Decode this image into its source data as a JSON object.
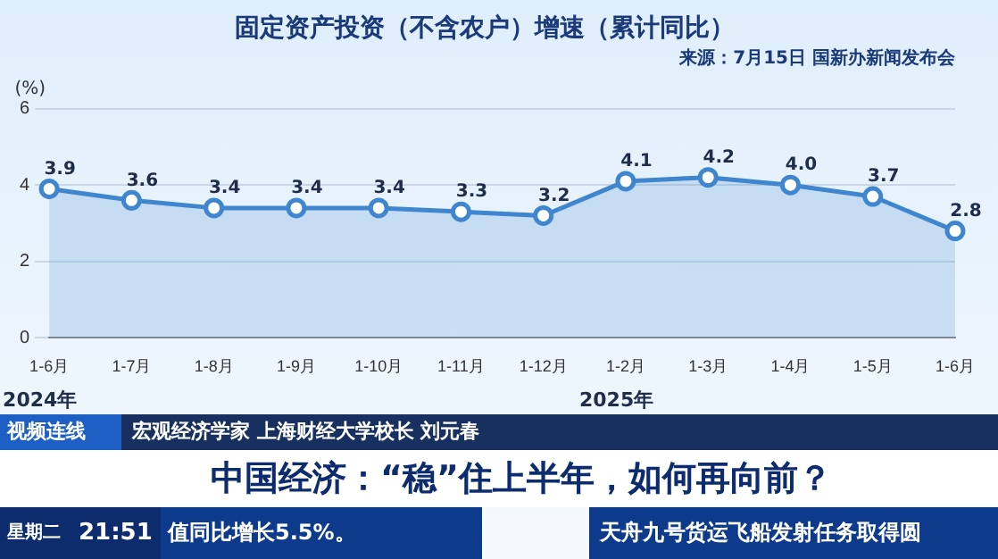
{
  "chart_data": {
    "type": "area",
    "title": "固定资产投资（不含农户）增速（累计同比）",
    "subtitle": "来源：7月15日 国新办新闻发布会",
    "ylabel": "(%)",
    "categories": [
      "1-6月",
      "1-7月",
      "1-8月",
      "1-9月",
      "1-10月",
      "1-11月",
      "1-12月",
      "1-2月",
      "1-3月",
      "1-4月",
      "1-5月",
      "1-6月"
    ],
    "series": [
      {
        "color": "#3f86cf",
        "values": [
          3.9,
          3.6,
          3.4,
          3.4,
          3.4,
          3.3,
          3.2,
          4.1,
          4.2,
          4.0,
          3.7,
          2.8
        ],
        "value_labels": [
          "3.9",
          "3.6",
          "3.4",
          "3.4",
          "3.4",
          "3.3",
          "3.2",
          "4.1",
          "4.2",
          "4.0",
          "3.7",
          "2.8"
        ]
      }
    ],
    "ylim": [
      0,
      6
    ],
    "yticks": [
      0,
      2,
      4,
      6
    ],
    "grid": "y",
    "marker": "circle",
    "legend": false,
    "annotations": [
      "2024年",
      "2025年",
      "视频连线",
      "宏观经济学家 上海财经大学校长 刘元春",
      "中国经济：“稳”住上半年，如何再向前？",
      "星期二",
      "21:51",
      "值同比增长5.5%。",
      "天舟九号货运飞船发射任务取得圆"
    ]
  }
}
